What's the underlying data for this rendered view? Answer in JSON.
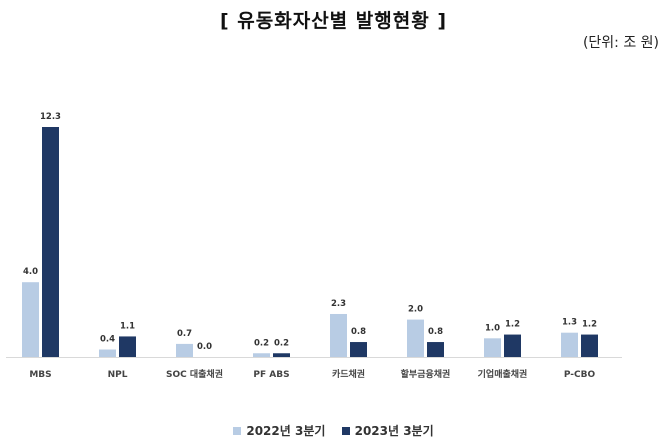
{
  "chart_data": {
    "type": "bar",
    "title": "[ 유동화자산별 발행현황 ]",
    "unit_note": "(단위: 조 원)",
    "categories": [
      "MBS",
      "NPL",
      "SOC 대출채권",
      "PF ABS",
      "카드채권",
      "할부금융채권",
      "기업매출채권",
      "P-CBO"
    ],
    "series": [
      {
        "name": "2022년 3분기",
        "color": "#b8cce4",
        "values": [
          4.0,
          0.4,
          0.7,
          0.2,
          2.3,
          2.0,
          1.0,
          1.3
        ]
      },
      {
        "name": "2023년 3분기",
        "color": "#1f3864",
        "values": [
          12.3,
          1.1,
          0.0,
          0.2,
          0.8,
          0.8,
          1.2,
          1.2
        ]
      }
    ],
    "data_labels": [
      [
        "4.0",
        "0.4",
        "0.7",
        "0.2",
        "2.3",
        "2.0",
        "1.0",
        "1.3"
      ],
      [
        "12.3",
        "1.1",
        "0.0",
        "0.2",
        "0.8",
        "0.8",
        "1.2",
        "1.2"
      ]
    ],
    "ylim": [
      0,
      12.3
    ],
    "grid": false,
    "legend_position": "bottom"
  }
}
